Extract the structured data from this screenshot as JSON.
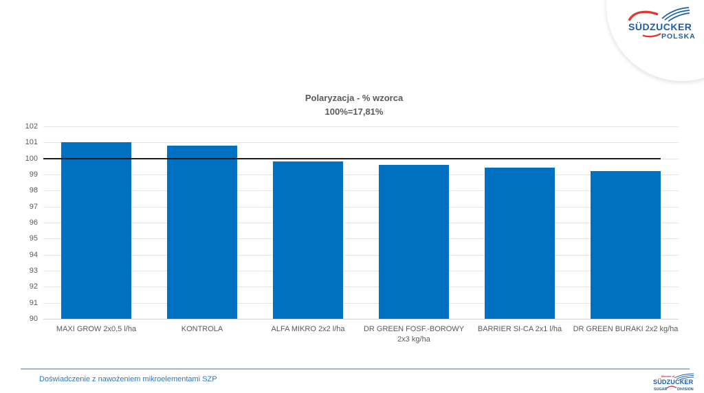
{
  "header_logo": {
    "brand": "SÜDZUCKER",
    "country": "POLSKA"
  },
  "chart_data": {
    "type": "bar",
    "title": "Polaryzacja - % wzorca",
    "subtitle": "100%=17,81%",
    "categories": [
      "MAXI GROW 2x0,5 l/ha",
      "KONTROLA",
      "ALFA MIKRO 2x2 l/ha",
      "DR GREEN FOSF.-BOROWY 2x3 kg/ha",
      "BARRIER SI-CA 2x1 l/ha",
      "DR GREEN BURAKI 2x2 kg/ha"
    ],
    "values": [
      101,
      100.8,
      99.8,
      99.6,
      99.45,
      99.2
    ],
    "ylim": [
      90,
      102
    ],
    "ytick_step": 1,
    "reference_line_value": 100,
    "bar_color": "#0070C0",
    "reference_line_color": "#1c1c1c",
    "gridline_color": "#e5e5e5",
    "grid": true,
    "legend_position": "none",
    "xlabel": "",
    "ylabel": ""
  },
  "footer": {
    "caption": "Doświadczenie z nawożeniem mikroelementami SZP",
    "logo": {
      "member_of": "Member of",
      "brand": "SÜDZUCKER",
      "division_left": "SUGAR",
      "division_right": "DIVISION"
    }
  }
}
